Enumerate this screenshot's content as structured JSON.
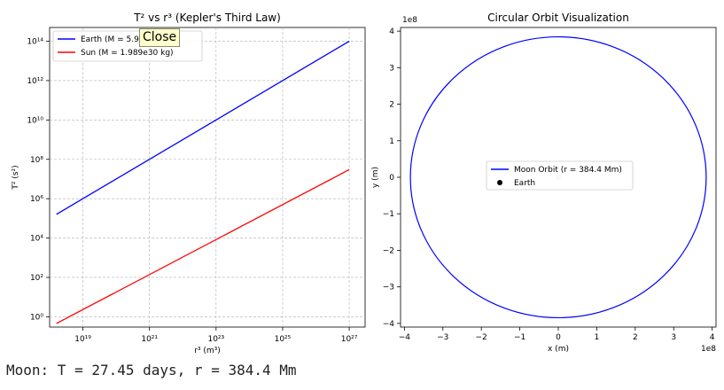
{
  "chart_data": [
    {
      "type": "line",
      "title": "T² vs r³ (Kepler's Third Law)",
      "xlabel": "r³ (m³)",
      "ylabel": "T² (s²)",
      "xscale": "log",
      "yscale": "log",
      "xlim": [
        1e+18,
        3e+27
      ],
      "ylim": [
        0.3,
        500000000000000.0
      ],
      "grid": true,
      "legend_position": "upper-left",
      "xticks": [
        1e+19,
        1e+21,
        1e+23,
        1e+25,
        1e+27
      ],
      "xtick_labels": [
        "10¹⁹",
        "10²¹",
        "10²³",
        "10²⁵",
        "10²⁷"
      ],
      "yticks": [
        1,
        100,
        10000,
        1000000.0,
        100000000.0,
        10000000000.0,
        1000000000000.0,
        100000000000000.0
      ],
      "ytick_labels": [
        "10⁰",
        "10²",
        "10⁴",
        "10⁶",
        "10⁸",
        "10¹⁰",
        "10¹²",
        "10¹⁴"
      ],
      "series": [
        {
          "name": "Earth (M = 5.972e24 kg)",
          "color": "#0000ff",
          "x": [
            1e+18,
            1e+27
          ],
          "y": [
            100000.0,
            100000000000000.0
          ]
        },
        {
          "name": "Sun (M = 1.989e30 kg)",
          "color": "#ff0000",
          "x": [
            1e+18,
            1e+27
          ],
          "y": [
            0.3,
            30000000.0
          ]
        }
      ]
    },
    {
      "type": "line",
      "title": "Circular Orbit Visualization",
      "xlabel": "x (m)",
      "ylabel": "y (m)",
      "axis_multiplier": "1e8",
      "xlim": [
        -410000000.0,
        410000000.0
      ],
      "ylim": [
        -410000000.0,
        410000000.0
      ],
      "xticks": [
        -400000000.0,
        -300000000.0,
        -200000000.0,
        -100000000.0,
        0,
        100000000.0,
        200000000.0,
        300000000.0,
        400000000.0
      ],
      "xtick_labels": [
        "−4",
        "−3",
        "−2",
        "−1",
        "0",
        "1",
        "2",
        "3",
        "4"
      ],
      "yticks": [
        -400000000.0,
        -300000000.0,
        -200000000.0,
        -100000000.0,
        0,
        100000000.0,
        200000000.0,
        300000000.0,
        400000000.0
      ],
      "ytick_labels": [
        "−4",
        "−3",
        "−2",
        "−1",
        "0",
        "1",
        "2",
        "3",
        "4"
      ],
      "grid": false,
      "legend_position": "center",
      "orbit": {
        "name": "Moon Orbit (r = 384.4 Mm)",
        "radius": 384400000.0,
        "color": "#0000ff"
      },
      "center_point": {
        "name": "Earth",
        "x": 0,
        "y": 0,
        "color": "#000000"
      }
    }
  ],
  "overlay": {
    "close_label": "Close"
  },
  "status": {
    "text": "Moon: T = 27.45 days, r = 384.4 Mm"
  }
}
